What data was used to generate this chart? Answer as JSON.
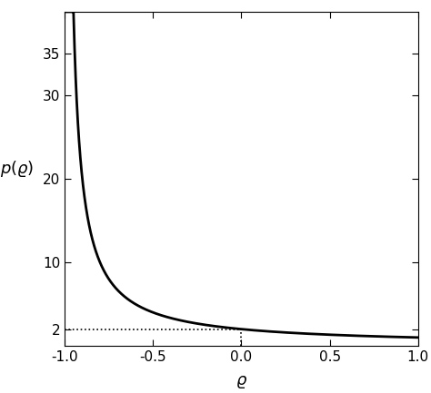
{
  "xlim": [
    -1.0,
    1.0
  ],
  "ylim": [
    0,
    40
  ],
  "yticks": [
    2,
    10,
    20,
    30,
    35
  ],
  "xticks": [
    -1.0,
    -0.5,
    0.0,
    0.5,
    1.0
  ],
  "xlabel": "$\\varrho$",
  "ylabel": "$p(\\varrho)$",
  "line_color": "black",
  "line_width": 2.0,
  "dotted_color": "black",
  "dotted_lw": 1.2,
  "dotted_style": ":",
  "background": "white",
  "dot_line_x1": -1.0,
  "dot_line_x2": 0.0,
  "dot_line_y": 2.0
}
